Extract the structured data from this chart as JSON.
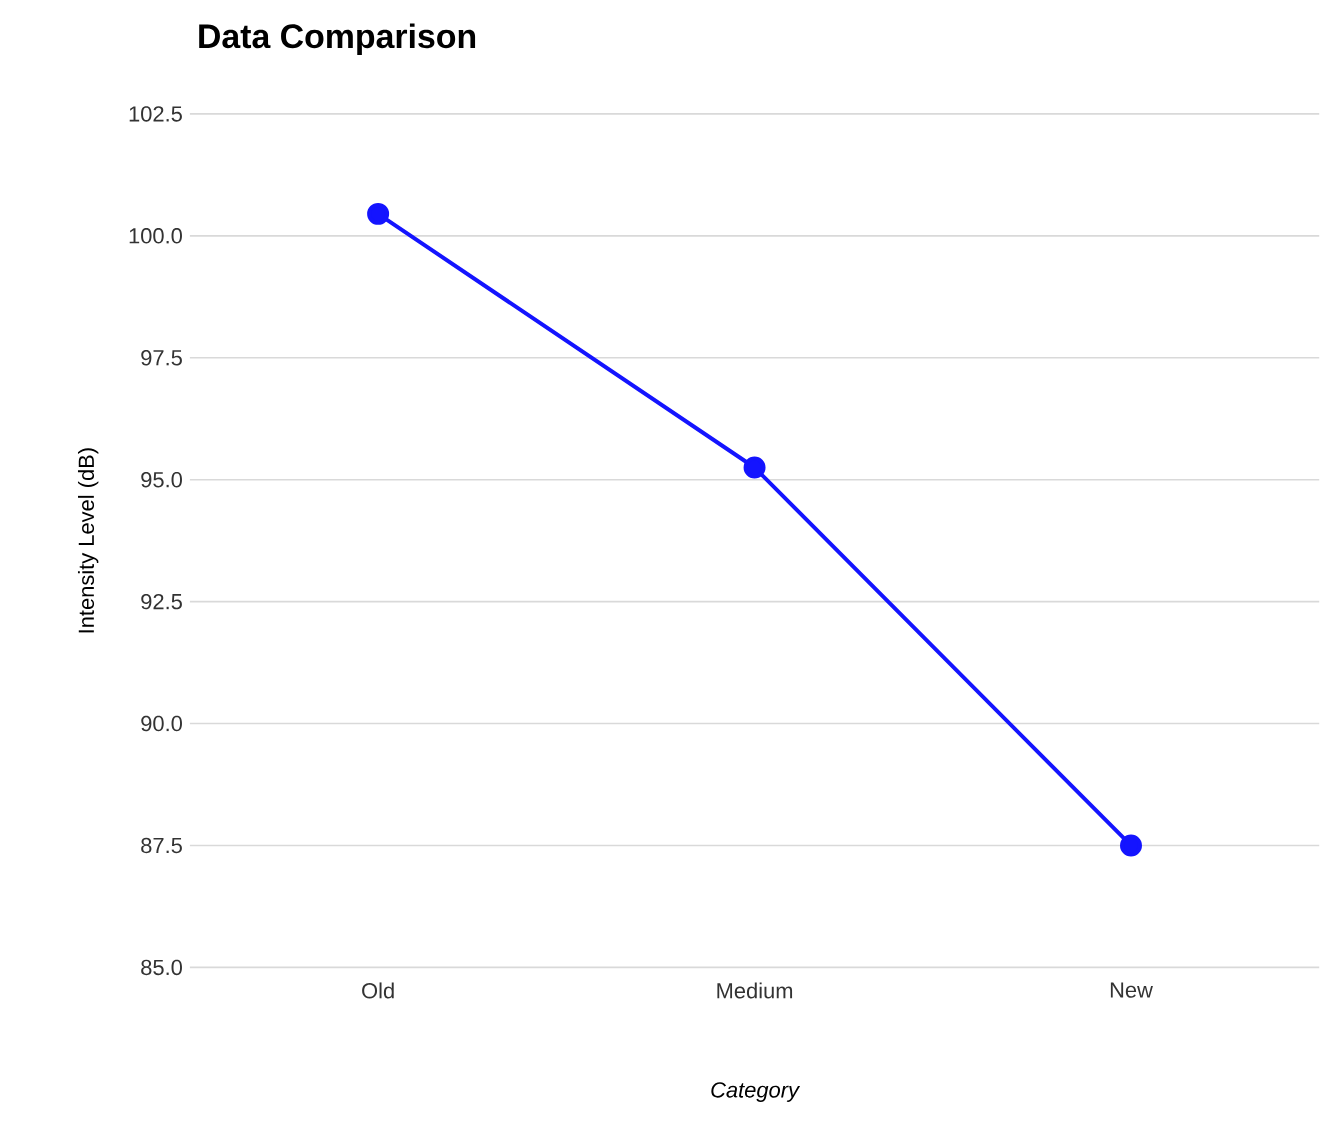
{
  "chart_data": {
    "type": "line",
    "title": "Data Comparison",
    "xlabel": "Category",
    "ylabel": "Intensity Level (dB)",
    "categories": [
      "Old",
      "Medium",
      "New"
    ],
    "series": [
      {
        "color": "#1414ff",
        "values": [
          100.45,
          95.25,
          87.5
        ]
      }
    ],
    "ylim": [
      85.0,
      102.5
    ],
    "yticks": [
      {
        "value": 85,
        "label": "85.0"
      },
      {
        "value": 87.5,
        "label": "87.5"
      },
      {
        "value": 90,
        "label": "90.0"
      },
      {
        "value": 92.5,
        "label": "92.5"
      },
      {
        "value": 95,
        "label": "95.0"
      },
      {
        "value": 97.5,
        "label": "97.5"
      },
      {
        "value": 100,
        "label": "100.0"
      },
      {
        "value": 102.5,
        "label": "102.5"
      }
    ],
    "grid": "y",
    "marker": "circle",
    "line_style": "solid"
  }
}
